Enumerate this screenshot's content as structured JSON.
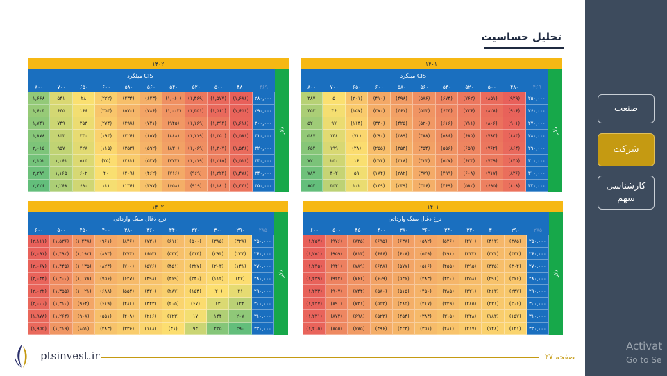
{
  "page_title": "تحلیل حساسیت",
  "sidebar": {
    "items": [
      {
        "label": "صنعت",
        "active": false
      },
      {
        "label": "شرکت",
        "active": true
      },
      {
        "label": "کارشناسی سهم",
        "active": false
      }
    ]
  },
  "watermark": {
    "line1": "Activat",
    "line2": "Go to Se"
  },
  "footer": {
    "site": "ptsinvest.ir",
    "page": "صفحه ۲۷"
  },
  "colors": {
    "blue": "#1a6fbf",
    "green": "#17a84a",
    "yellow": "#f6b814",
    "sidebar": "#3d4b5d",
    "active": "#c59a12"
  },
  "tables": [
    {
      "id": "t1",
      "year": "۱۴۰۱",
      "subtitle": "میلگرد CIS",
      "side": "دلار",
      "corner": "۴۶۹",
      "cols": [
        "۴۸۰",
        "۵۰۰",
        "۵۲۰",
        "۵۴۰",
        "۵۶۰",
        "۵۸۰",
        "۶۰۰",
        "۶۵۰",
        "۷۰۰",
        "۸۰۰"
      ],
      "rows": [
        {
          "label": "۲۵۰,۰۰۰",
          "cells": [
            "(۹۲۹)",
            "(۸۵۱)",
            "(۷۶۲)",
            "(۶۷۴)",
            "(۵۸۶)",
            "(۴۹۸)",
            "(۴۱۰)",
            "(۲۰۱)",
            "۵",
            "۳۸۷"
          ]
        },
        {
          "label": "۲۶۰,۰۰۰",
          "cells": [
            "(۹۱۶)",
            "(۸۲۸)",
            "(۷۳۶)",
            "(۶۴۴)",
            "(۵۵۳)",
            "(۴۶۱)",
            "(۳۷۰)",
            "(۱۵۷)",
            "۴۶",
            "۴۵۳"
          ]
        },
        {
          "label": "۲۷۰,۰۰۰",
          "cells": [
            "(۹۰۱)",
            "(۸۰۶)",
            "(۷۱۱)",
            "(۶۱۶)",
            "(۵۲۰)",
            "(۴۲۵)",
            "(۳۳۰)",
            "(۱۱۴)",
            "۹۷",
            "۵۲۰"
          ]
        },
        {
          "label": "۲۸۰,۰۰۰",
          "cells": [
            "(۸۸۳)",
            "(۷۸۴)",
            "(۶۸۵)",
            "(۵۸۶)",
            "(۴۸۸)",
            "(۳۸۹)",
            "(۲۹۰)",
            "(۷۱)",
            "۱۴۸",
            "۵۸۷"
          ]
        },
        {
          "label": "۲۹۰,۰۰۰",
          "cells": [
            "(۸۶۴)",
            "(۷۶۲)",
            "(۶۵۹)",
            "(۵۵۶)",
            "(۴۵۴)",
            "(۳۵۳)",
            "(۲۵۵)",
            "(۲۸)",
            "۱۹۹",
            "۶۵۴"
          ]
        },
        {
          "label": "۳۰۰,۰۰۰",
          "cells": [
            "(۸۴۵)",
            "(۷۳۹)",
            "(۶۳۳)",
            "(۵۲۷)",
            "(۴۲۳)",
            "(۳۱۸)",
            "(۲۱۴)",
            "۱۶",
            "۲۵۰",
            "۷۲۰"
          ]
        },
        {
          "label": "۳۱۰,۰۰۰",
          "cells": [
            "(۸۲۶)",
            "(۷۱۷)",
            "(۶۰۸)",
            "(۴۹۹)",
            "(۳۸۹)",
            "(۲۸۲)",
            "(۱۸۴)",
            "۵۹",
            "۳۰۲",
            "۷۸۷"
          ]
        },
        {
          "label": "۳۲۰,۰۰۰",
          "cells": [
            "(۸۰۸)",
            "(۶۹۵)",
            "(۵۸۲)",
            "(۴۶۹)",
            "(۳۵۶)",
            "(۲۴۹)",
            "(۱۴۹)",
            "۱۰۲",
            "۳۵۳",
            "۸۵۴"
          ]
        }
      ]
    },
    {
      "id": "t2",
      "year": "۱۴۰۲",
      "subtitle": "میلگرد CIS",
      "side": "دلار",
      "corner": "۴۶۹",
      "cols": [
        "۴۸۰",
        "۵۰۰",
        "۵۲۰",
        "۵۴۰",
        "۵۶۰",
        "۵۸۰",
        "۶۰۰",
        "۶۵۰",
        "۷۰۰",
        "۸۰۰"
      ],
      "rows": [
        {
          "label": "۲۸۰,۰۰۰",
          "cells": [
            "(۱,۶۸۶)",
            "(۱,۵۷۷)",
            "(۱,۳۶۹)",
            "(۱,۰۶۰)",
            "(۶۴۳)",
            "(۴۳۴)",
            "(۲۲۲)",
            "۲۸",
            "۵۴۱",
            "۱,۶۶۸"
          ]
        },
        {
          "label": "۲۹۰,۰۰۰",
          "cells": [
            "(۱,۶۵۱)",
            "(۱,۵۶۱)",
            "(۱,۳۵۱)",
            "(۱,۰۰۳)",
            "(۷۸۶)",
            "(۵۷۰)",
            "(۳۵۴)",
            "۱۶۶",
            "۶۴۵",
            "۱,۶۰۴"
          ]
        },
        {
          "label": "۳۰۰,۰۰۰",
          "cells": [
            "(۱,۶۱۶)",
            "(۱,۳۹۲)",
            "(۱,۱۶۹)",
            "(۹۴۵)",
            "(۷۲۱)",
            "(۴۹۸)",
            "(۲۷۴)",
            "۲۵۳",
            "۷۴۹",
            "۱,۷۴۱"
          ]
        },
        {
          "label": "۳۱۰,۰۰۰",
          "cells": [
            "(۱,۵۸۱)",
            "(۱,۳۵۰)",
            "(۱,۱۱۹)",
            "(۸۸۸)",
            "(۶۵۷)",
            "(۴۲۶)",
            "(۱۹۴)",
            "۳۴۰",
            "۸۵۳",
            "۱,۸۷۸"
          ]
        },
        {
          "label": "۳۲۰,۰۰۰",
          "cells": [
            "(۱,۵۴۶)",
            "(۱,۳۰۷)",
            "(۱,۰۶۹)",
            "(۸۳۰)",
            "(۵۹۲)",
            "(۳۵۳)",
            "(۱۱۵)",
            "۴۲۸",
            "۹۵۷",
            "۲,۰۱۵"
          ]
        },
        {
          "label": "۳۳۰,۰۰۰",
          "cells": [
            "(۱,۵۱۱)",
            "(۱,۲۶۵)",
            "(۱,۰۱۹)",
            "(۷۷۳)",
            "(۵۲۷)",
            "(۲۸۱)",
            "(۳۵)",
            "۵۱۵",
            "۱,۰۶۱",
            "۲,۱۵۲"
          ]
        },
        {
          "label": "۳۴۰,۰۰۰",
          "cells": [
            "(۱,۴۷۶)",
            "(۱,۲۲۲)",
            "(۹۶۹)",
            "(۷۱۶)",
            "(۴۶۲)",
            "(۲۰۹)",
            "۴۰",
            "۶۰۲",
            "۱,۱۶۵",
            "۲,۲۸۹"
          ]
        },
        {
          "label": "۳۵۰,۰۰۰",
          "cells": [
            "(۱,۴۴۱)",
            "(۱,۱۸۰)",
            "(۹۱۹)",
            "(۶۵۸)",
            "(۳۹۷)",
            "(۱۳۶)",
            "۱۱۱",
            "۶۹۰",
            "۱,۲۶۸",
            "۲,۴۲۶"
          ]
        }
      ]
    },
    {
      "id": "t3",
      "year": "۱۴۰۱",
      "subtitle": "نرخ ذغال سنگ وارداتی",
      "side": "دلار",
      "corner": "۲۸۵",
      "cols": [
        "۲۹۰",
        "۳۰۰",
        "۳۲۰",
        "۳۴۰",
        "۳۶۰",
        "۳۸۰",
        "۴۰۰",
        "۴۵۰",
        "۵۰۰",
        "۶۰۰"
      ],
      "rows": [
        {
          "label": "۲۵۰,۰۰۰",
          "cells": [
            "(۳۸۵)",
            "(۴۱۳)",
            "(۴۷۰)",
            "(۵۲۶)",
            "(۵۸۲)",
            "(۶۳۸)",
            "(۶۹۵)",
            "(۸۳۵)",
            "(۹۷۶)",
            "(۱,۲۵۷)"
          ]
        },
        {
          "label": "۲۶۰,۰۰۰",
          "cells": [
            "(۳۴۴)",
            "(۳۷۴)",
            "(۴۳۳)",
            "(۴۹۱)",
            "(۵۴۹)",
            "(۶۰۸)",
            "(۶۶۶)",
            "(۸۱۳)",
            "(۹۵۹)",
            "(۱,۲۵۱)"
          ]
        },
        {
          "label": "۲۷۰,۰۰۰",
          "cells": [
            "(۳۰۴)",
            "(۳۳۵)",
            "(۳۹۵)",
            "(۴۵۵)",
            "(۵۱۶)",
            "(۵۷۷)",
            "(۶۳۸)",
            "(۷۸۹)",
            "(۹۴۱)",
            "(۱,۲۴۵)"
          ]
        },
        {
          "label": "۲۸۰,۰۰۰",
          "cells": [
            "(۲۶۶)",
            "(۲۹۶)",
            "(۳۵۸)",
            "(۴۲۰)",
            "(۴۸۳)",
            "(۵۴۶)",
            "(۶۰۹)",
            "(۷۶۶)",
            "(۹۲۴)",
            "(۱,۲۳۹)"
          ]
        },
        {
          "label": "۲۹۰,۰۰۰",
          "cells": [
            "(۲۳۷)",
            "(۲۶۳)",
            "(۳۲۱)",
            "(۳۸۵)",
            "(۴۵۰)",
            "(۵۱۵)",
            "(۵۸۰)",
            "(۷۴۴)",
            "(۹۰۷)",
            "(۱,۲۳۳)"
          ]
        },
        {
          "label": "۳۰۰,۰۰۰",
          "cells": [
            "(۲۰۶)",
            "(۲۳۱)",
            "(۲۸۵)",
            "(۳۴۹)",
            "(۴۱۷)",
            "(۴۸۵)",
            "(۵۵۲)",
            "(۷۲۱)",
            "(۸۹۰)",
            "(۱,۲۲۷)"
          ]
        },
        {
          "label": "۳۱۰,۰۰۰",
          "cells": [
            "(۱۵۷)",
            "(۱۸۳)",
            "(۲۴۸)",
            "(۳۱۵)",
            "(۳۸۴)",
            "(۴۵۴)",
            "(۵۲۳)",
            "(۶۹۸)",
            "(۸۷۲)",
            "(۱,۲۲۱)"
          ]
        },
        {
          "label": "۳۲۰,۰۰۰",
          "cells": [
            "(۱۲۱)",
            "(۱۴۸)",
            "(۲۱۷)",
            "(۲۸۱)",
            "(۳۵۱)",
            "(۴۲۳)",
            "(۴۹۶)",
            "(۶۷۵)",
            "(۸۵۵)",
            "(۱,۲۱۵)"
          ]
        }
      ]
    },
    {
      "id": "t4",
      "year": "۱۴۰۲",
      "subtitle": "نرخ ذغال سنگ وارداتی",
      "side": "دلار",
      "corner": "۲۸۵",
      "cols": [
        "۲۹۰",
        "۳۰۰",
        "۳۲۰",
        "۳۴۰",
        "۳۶۰",
        "۳۸۰",
        "۴۰۰",
        "۴۵۰",
        "۵۰۰",
        "۶۰۰"
      ],
      "rows": [
        {
          "label": "۲۵۰,۰۰۰",
          "cells": [
            "(۳۲۸)",
            "(۳۸۵)",
            "(۵۰۰)",
            "(۶۱۶)",
            "(۷۳۱)",
            "(۸۴۶)",
            "(۹۶۱)",
            "(۱,۲۴۸)",
            "(۱,۵۳۶)",
            "(۲,۱۱۱)"
          ]
        },
        {
          "label": "۲۶۰,۰۰۰",
          "cells": [
            "(۲۳۴)",
            "(۲۹۴)",
            "(۴۱۴)",
            "(۵۳۳)",
            "(۶۵۳)",
            "(۷۷۳)",
            "(۸۹۳)",
            "(۱,۱۹۲)",
            "(۱,۴۹۲)",
            "(۲,۰۹۱)"
          ]
        },
        {
          "label": "۲۷۰,۰۰۰",
          "cells": [
            "(۱۴۱)",
            "(۲۰۳)",
            "(۳۲۷)",
            "(۴۵۱)",
            "(۵۷۶)",
            "(۷۰۰)",
            "(۸۲۴)",
            "(۱,۱۳۵)",
            "(۱,۴۴۵)",
            "(۲,۰۶۷)"
          ]
        },
        {
          "label": "۲۸۰,۰۰۰",
          "cells": [
            "(۴۷)",
            "(۱۱۲)",
            "(۲۴۰)",
            "(۳۶۹)",
            "(۴۹۸)",
            "(۶۲۷)",
            "(۷۵۶)",
            "(۱,۰۷۸)",
            "(۱,۴۰۰)",
            "(۲,۰۴۴)"
          ]
        },
        {
          "label": "۲۹۰,۰۰۰",
          "cells": [
            "۴۱",
            "(۲۰)",
            "(۱۵۴)",
            "(۲۸۷)",
            "(۴۲۰)",
            "(۵۵۴)",
            "(۶۸۸)",
            "(۱,۰۲۱)",
            "(۱,۳۵۵)",
            "(۲,۰۲۲)"
          ]
        },
        {
          "label": "۳۰۰,۰۰۰",
          "cells": [
            "۱۲۴",
            "۶۳",
            "(۶۷)",
            "(۲۰۵)",
            "(۳۴۳)",
            "(۴۸۱)",
            "(۶۱۹)",
            "(۹۶۴)",
            "(۱,۳۱۰)",
            "(۲,۰۰۰)"
          ]
        },
        {
          "label": "۳۱۰,۰۰۰",
          "cells": [
            "۲۰۷",
            "۱۴۴",
            "۱۷",
            "(۱۲۳)",
            "(۲۶۶)",
            "(۴۰۸)",
            "(۵۵۱)",
            "(۹۰۸)",
            "(۱,۲۶۴)",
            "(۱,۹۷۸)"
          ]
        },
        {
          "label": "۳۲۰,۰۰۰",
          "cells": [
            "۲۹۰",
            "۲۲۵",
            "۹۴",
            "(۴۱)",
            "(۱۸۸)",
            "(۳۳۶)",
            "(۴۸۳)",
            "(۸۵۱)",
            "(۱,۲۱۹)",
            "(۱,۹۵۵)"
          ]
        }
      ]
    }
  ]
}
